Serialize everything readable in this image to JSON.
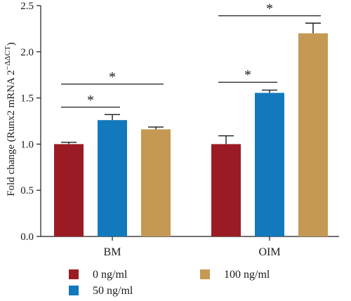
{
  "chart_data": {
    "type": "bar",
    "ylabel_main": "Fold change (Runx2 mRNA 2",
    "ylabel_sup": "−ΔΔCT",
    "ylabel_close": ")",
    "ylim": [
      0,
      2.5
    ],
    "yticks": [
      "0.0",
      "0.5",
      "1.0",
      "1.5",
      "2.0",
      "2.5"
    ],
    "grid": false,
    "legend_position": "bottom",
    "categories": [
      "BM",
      "OIM"
    ],
    "series": [
      {
        "name": "0 ng/ml",
        "color": "#9B1B24",
        "values": [
          1.0,
          1.0
        ],
        "errors": [
          0.02,
          0.09
        ]
      },
      {
        "name": "50 ng/ml",
        "color": "#1179BC",
        "values": [
          1.26,
          1.555
        ],
        "errors": [
          0.06,
          0.03
        ]
      },
      {
        "name": "100 ng/ml",
        "color": "#C59954",
        "values": [
          1.16,
          2.2
        ],
        "errors": [
          0.025,
          0.11
        ]
      }
    ],
    "significance": [
      {
        "category": 0,
        "from_series": 0,
        "to_series": 1,
        "y": 1.4,
        "label": "*"
      },
      {
        "category": 0,
        "from_series": 0,
        "to_series": 2,
        "y": 1.65,
        "label": "*"
      },
      {
        "category": 1,
        "from_series": 0,
        "to_series": 1,
        "y": 1.67,
        "label": "*"
      },
      {
        "category": 1,
        "from_series": 0,
        "to_series": 2,
        "y": 2.39,
        "label": "*"
      }
    ]
  }
}
